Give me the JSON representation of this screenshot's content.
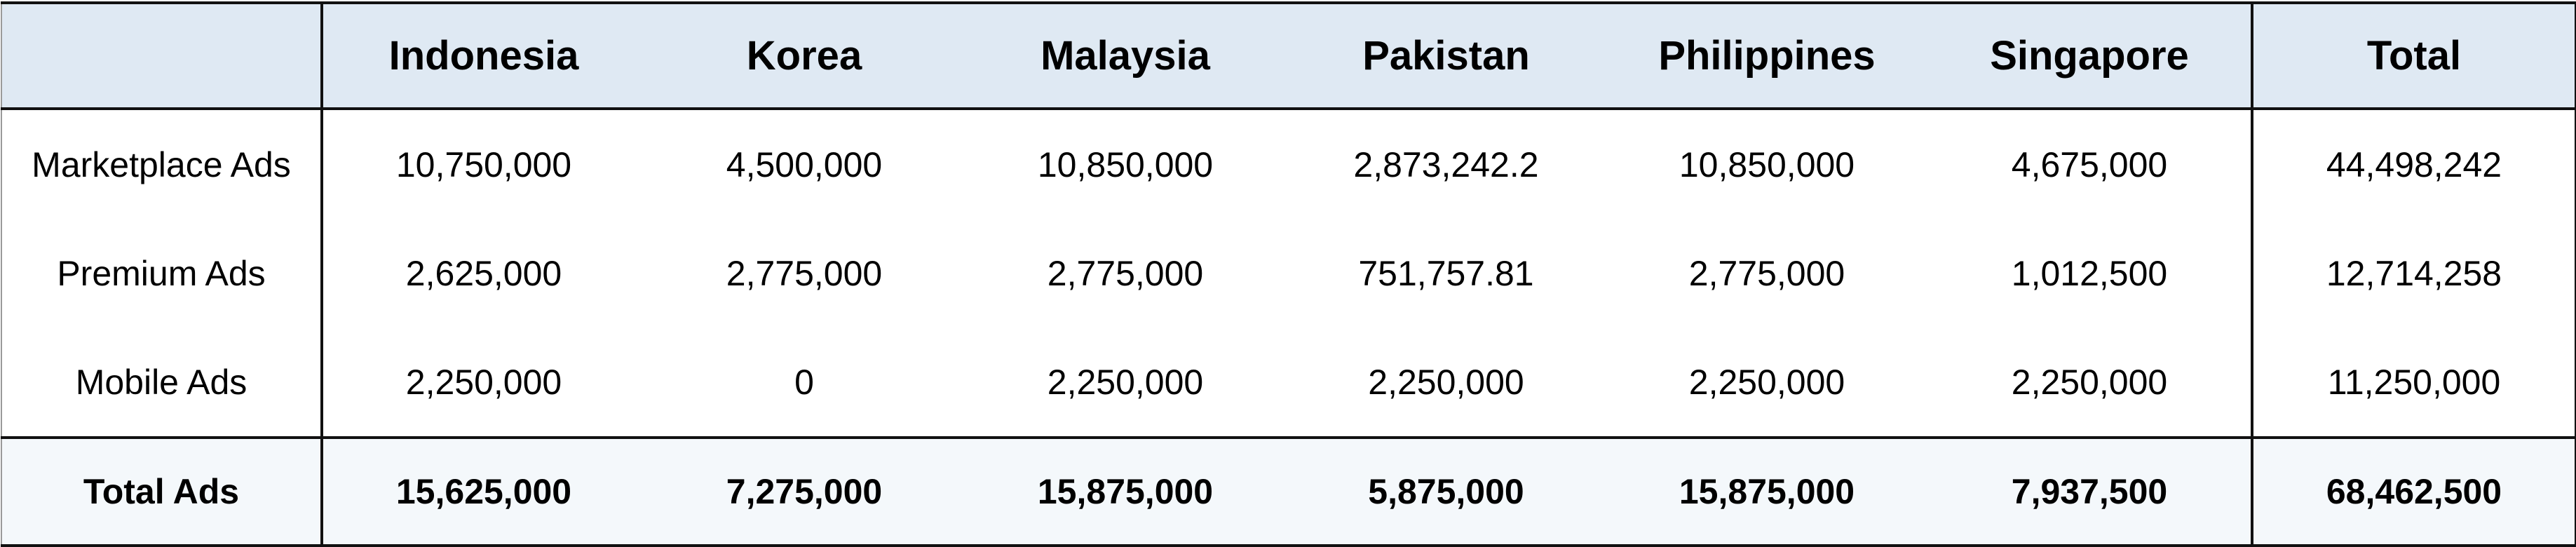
{
  "table": {
    "corner": "",
    "columns": [
      "Indonesia",
      "Korea",
      "Malaysia",
      "Pakistan",
      "Philippines",
      "Singapore",
      "Total"
    ],
    "rows": [
      {
        "label": "Marketplace Ads",
        "values": [
          "10,750,000",
          "4,500,000",
          "10,850,000",
          "2,873,242.2",
          "10,850,000",
          "4,675,000",
          "44,498,242"
        ]
      },
      {
        "label": "Premium Ads",
        "values": [
          "2,625,000",
          "2,775,000",
          "2,775,000",
          "751,757.81",
          "2,775,000",
          "1,012,500",
          "12,714,258"
        ]
      },
      {
        "label": "Mobile Ads",
        "values": [
          "2,250,000",
          "0",
          "2,250,000",
          "2,250,000",
          "2,250,000",
          "2,250,000",
          "11,250,000"
        ]
      }
    ],
    "total_row": {
      "label": "Total Ads",
      "values": [
        "15,625,000",
        "7,275,000",
        "15,875,000",
        "5,875,000",
        "15,875,000",
        "7,937,500",
        "68,462,500"
      ]
    }
  },
  "colors": {
    "header_bg": "#dfe9f3",
    "total_bg": "#f4f8fb",
    "rule": "#111111"
  }
}
